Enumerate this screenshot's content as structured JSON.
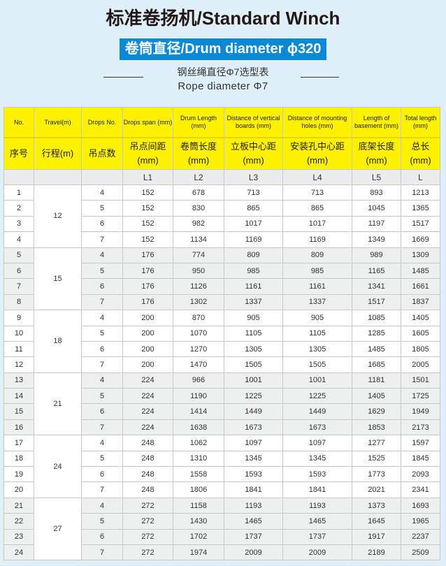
{
  "title": "标准卷扬机/Standard Winch",
  "badge": "卷筒直径/Drum diameter ϕ320",
  "subtitle_cn": "钢丝绳直径Φ7选型表",
  "subtitle_en": "Rope diameter Φ7",
  "colors": {
    "badge": "#0a8ad6",
    "header": "#fff200",
    "background": "#dff0fa",
    "alt_row": "#eef0f0"
  },
  "headers_en": [
    "No.",
    "Travel(m)",
    "Drops No.",
    "Drops span (mm)",
    "Drum Length (mm)",
    "Distance of vertical boards (mm)",
    "Distance of mounting holes (mm)",
    "Length of basement (mm)",
    "Total length (mm)"
  ],
  "headers_cn": [
    "序号",
    "行程(m)",
    "吊点数",
    "吊点间距 (mm)",
    "卷筒长度 (mm)",
    "立板中心距 (mm)",
    "安装孔中心距 (mm)",
    "底架长度 (mm)",
    "总长 (mm)"
  ],
  "codes": [
    "",
    "",
    "",
    "L1",
    "L2",
    "L3",
    "L4",
    "L5",
    "L"
  ],
  "groups": [
    {
      "travel": "12",
      "rows": [
        [
          "1",
          "4",
          "152",
          "678",
          "713",
          "713",
          "893",
          "1213"
        ],
        [
          "2",
          "5",
          "152",
          "830",
          "865",
          "865",
          "1045",
          "1365"
        ],
        [
          "3",
          "6",
          "152",
          "982",
          "1017",
          "1017",
          "1197",
          "1517"
        ],
        [
          "4",
          "7",
          "152",
          "1134",
          "1169",
          "1169",
          "1349",
          "1669"
        ]
      ]
    },
    {
      "travel": "15",
      "rows": [
        [
          "5",
          "4",
          "176",
          "774",
          "809",
          "809",
          "989",
          "1309"
        ],
        [
          "6",
          "5",
          "176",
          "950",
          "985",
          "985",
          "1165",
          "1485"
        ],
        [
          "7",
          "6",
          "176",
          "1126",
          "1161",
          "1161",
          "1341",
          "1661"
        ],
        [
          "8",
          "7",
          "176",
          "1302",
          "1337",
          "1337",
          "1517",
          "1837"
        ]
      ]
    },
    {
      "travel": "18",
      "rows": [
        [
          "9",
          "4",
          "200",
          "870",
          "905",
          "905",
          "1085",
          "1405"
        ],
        [
          "10",
          "5",
          "200",
          "1070",
          "1105",
          "1105",
          "1285",
          "1605"
        ],
        [
          "11",
          "6",
          "200",
          "1270",
          "1305",
          "1305",
          "1485",
          "1805"
        ],
        [
          "12",
          "7",
          "200",
          "1470",
          "1505",
          "1505",
          "1685",
          "2005"
        ]
      ]
    },
    {
      "travel": "21",
      "rows": [
        [
          "13",
          "4",
          "224",
          "966",
          "1001",
          "1001",
          "1181",
          "1501"
        ],
        [
          "14",
          "5",
          "224",
          "1190",
          "1225",
          "1225",
          "1405",
          "1725"
        ],
        [
          "15",
          "6",
          "224",
          "1414",
          "1449",
          "1449",
          "1629",
          "1949"
        ],
        [
          "16",
          "7",
          "224",
          "1638",
          "1673",
          "1673",
          "1853",
          "2173"
        ]
      ]
    },
    {
      "travel": "24",
      "rows": [
        [
          "17",
          "4",
          "248",
          "1062",
          "1097",
          "1097",
          "1277",
          "1597"
        ],
        [
          "18",
          "5",
          "248",
          "1310",
          "1345",
          "1345",
          "1525",
          "1845"
        ],
        [
          "19",
          "6",
          "248",
          "1558",
          "1593",
          "1593",
          "1773",
          "2093"
        ],
        [
          "20",
          "7",
          "248",
          "1806",
          "1841",
          "1841",
          "2021",
          "2341"
        ]
      ]
    },
    {
      "travel": "27",
      "rows": [
        [
          "21",
          "4",
          "272",
          "1158",
          "1193",
          "1193",
          "1373",
          "1693"
        ],
        [
          "22",
          "5",
          "272",
          "1430",
          "1465",
          "1465",
          "1645",
          "1965"
        ],
        [
          "23",
          "6",
          "272",
          "1702",
          "1737",
          "1737",
          "1917",
          "2237"
        ],
        [
          "24",
          "7",
          "272",
          "1974",
          "2009",
          "2009",
          "2189",
          "2509"
        ]
      ]
    }
  ]
}
